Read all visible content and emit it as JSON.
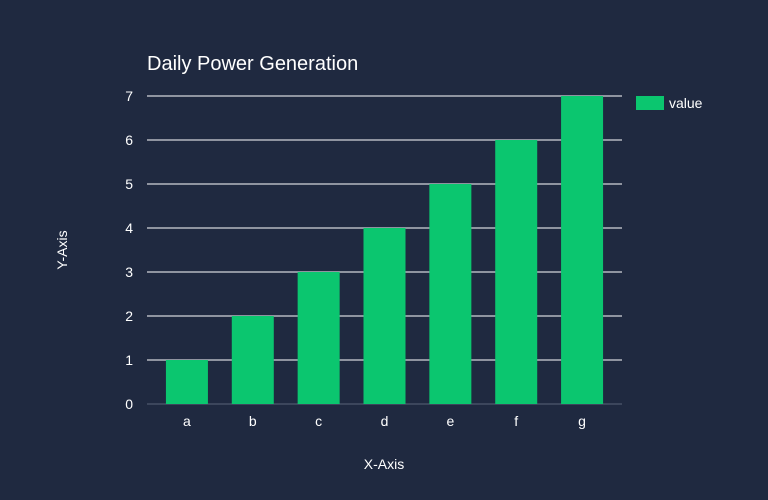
{
  "colors": {
    "background": "#1f2940",
    "bar": "#0bc66f",
    "grid": "#ffffff",
    "text": "#ffffff"
  },
  "chart_data": {
    "type": "bar",
    "title": "Daily Power Generation",
    "xlabel": "X-Axis",
    "ylabel": "Y-Axis",
    "categories": [
      "a",
      "b",
      "c",
      "d",
      "e",
      "f",
      "g"
    ],
    "series": [
      {
        "name": "value",
        "values": [
          1,
          2,
          3,
          4,
          5,
          6,
          7
        ]
      }
    ],
    "ylim": [
      0,
      7
    ],
    "yticks": [
      0,
      1,
      2,
      3,
      4,
      5,
      6,
      7
    ],
    "grid": true,
    "legend": "top-right"
  }
}
